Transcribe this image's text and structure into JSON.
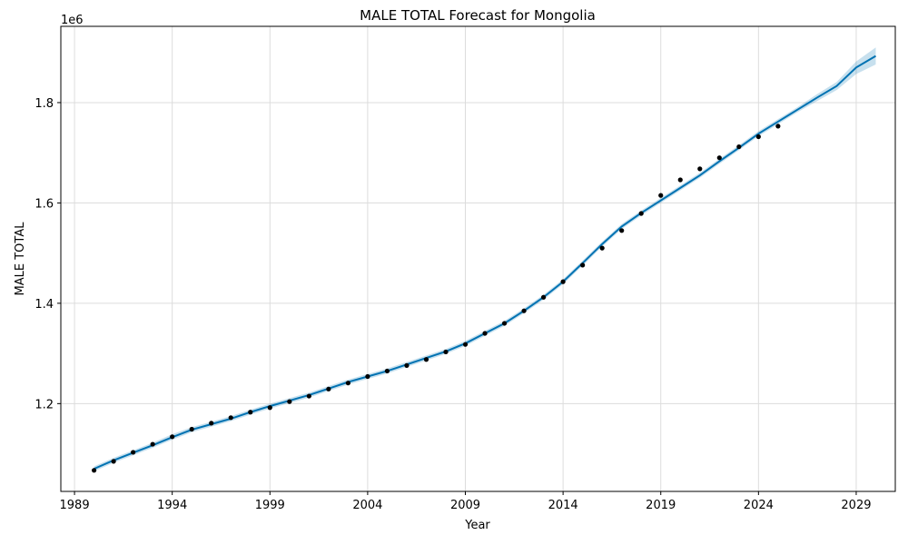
{
  "chart_data": {
    "type": "line",
    "title": "MALE TOTAL Forecast for Mongolia",
    "xlabel": "Year",
    "ylabel": "MALE TOTAL",
    "y_offset_label": "1e6",
    "xlim": [
      1988.3,
      2031.0
    ],
    "ylim": [
      1025000,
      1952000
    ],
    "x_ticks": [
      1989,
      1994,
      1999,
      2004,
      2009,
      2014,
      2019,
      2024,
      2029
    ],
    "y_ticks": [
      1.2,
      1.4,
      1.6,
      1.8
    ],
    "y_tick_scale": 1000000,
    "grid": true,
    "colors": {
      "forecast": "#0072B2",
      "interval": "#0072B2",
      "observed": "#000000"
    },
    "series": [
      {
        "name": "observed",
        "kind": "points",
        "x": [
          1990,
          1991,
          1992,
          1993,
          1994,
          1995,
          1996,
          1997,
          1998,
          1999,
          2000,
          2001,
          2002,
          2003,
          2004,
          2005,
          2006,
          2007,
          2008,
          2009,
          2010,
          2011,
          2012,
          2013,
          2014,
          2015,
          2016,
          2017,
          2018,
          2019,
          2020,
          2021,
          2022,
          2023,
          2024,
          2025
        ],
        "y": [
          1067000,
          1085000,
          1103000,
          1119000,
          1134000,
          1149000,
          1161000,
          1172000,
          1183000,
          1192000,
          1204000,
          1215000,
          1229000,
          1241000,
          1254000,
          1265000,
          1276000,
          1288000,
          1303000,
          1318000,
          1340000,
          1360000,
          1385000,
          1412000,
          1443000,
          1476000,
          1510000,
          1545000,
          1579000,
          1615000,
          1646000,
          1668000,
          1690000,
          1712000,
          1732000,
          1753000
        ]
      },
      {
        "name": "forecast",
        "kind": "line",
        "x": [
          1990,
          1991,
          1992,
          1993,
          1994,
          1995,
          1996,
          1997,
          1998,
          1999,
          2000,
          2001,
          2002,
          2003,
          2004,
          2005,
          2006,
          2007,
          2008,
          2009,
          2010,
          2011,
          2012,
          2013,
          2014,
          2015,
          2016,
          2017,
          2018,
          2019,
          2020,
          2021,
          2022,
          2023,
          2024,
          2025,
          2026,
          2027,
          2028,
          2029,
          2030
        ],
        "y": [
          1070000,
          1087000,
          1102000,
          1117000,
          1133000,
          1148000,
          1159000,
          1170000,
          1183000,
          1195000,
          1206000,
          1217000,
          1230000,
          1243000,
          1254000,
          1265000,
          1278000,
          1291000,
          1304000,
          1320000,
          1340000,
          1360000,
          1385000,
          1412000,
          1443000,
          1480000,
          1518000,
          1553000,
          1580000,
          1605000,
          1630000,
          1655000,
          1683000,
          1710000,
          1738000,
          1762000,
          1786000,
          1810000,
          1833000,
          1870000,
          1893000
        ]
      },
      {
        "name": "interval",
        "kind": "band",
        "x": [
          1990,
          1991,
          1992,
          1993,
          1994,
          1995,
          1996,
          1997,
          1998,
          1999,
          2000,
          2001,
          2002,
          2003,
          2004,
          2005,
          2006,
          2007,
          2008,
          2009,
          2010,
          2011,
          2012,
          2013,
          2014,
          2015,
          2016,
          2017,
          2018,
          2019,
          2020,
          2021,
          2022,
          2023,
          2024,
          2025,
          2026,
          2027,
          2028,
          2029,
          2030
        ],
        "lower": [
          1065000,
          1082000,
          1097000,
          1112000,
          1128000,
          1143000,
          1154000,
          1165000,
          1178000,
          1190000,
          1201000,
          1212000,
          1225000,
          1238000,
          1249000,
          1260000,
          1273000,
          1286000,
          1299000,
          1315000,
          1335000,
          1355000,
          1380000,
          1407000,
          1438000,
          1475000,
          1513000,
          1548000,
          1575000,
          1600000,
          1625000,
          1650000,
          1678000,
          1705000,
          1733000,
          1757000,
          1781000,
          1803000,
          1825000,
          1857000,
          1876000
        ],
        "upper": [
          1075000,
          1092000,
          1107000,
          1122000,
          1139000,
          1153000,
          1164000,
          1175000,
          1188000,
          1200000,
          1211000,
          1222000,
          1235000,
          1248000,
          1259000,
          1270000,
          1283000,
          1296000,
          1309000,
          1325000,
          1345000,
          1365000,
          1390000,
          1417000,
          1448000,
          1485000,
          1523000,
          1558000,
          1585000,
          1610000,
          1635000,
          1660000,
          1688000,
          1715000,
          1743000,
          1767000,
          1791000,
          1817000,
          1841000,
          1882000,
          1910000
        ]
      }
    ]
  }
}
